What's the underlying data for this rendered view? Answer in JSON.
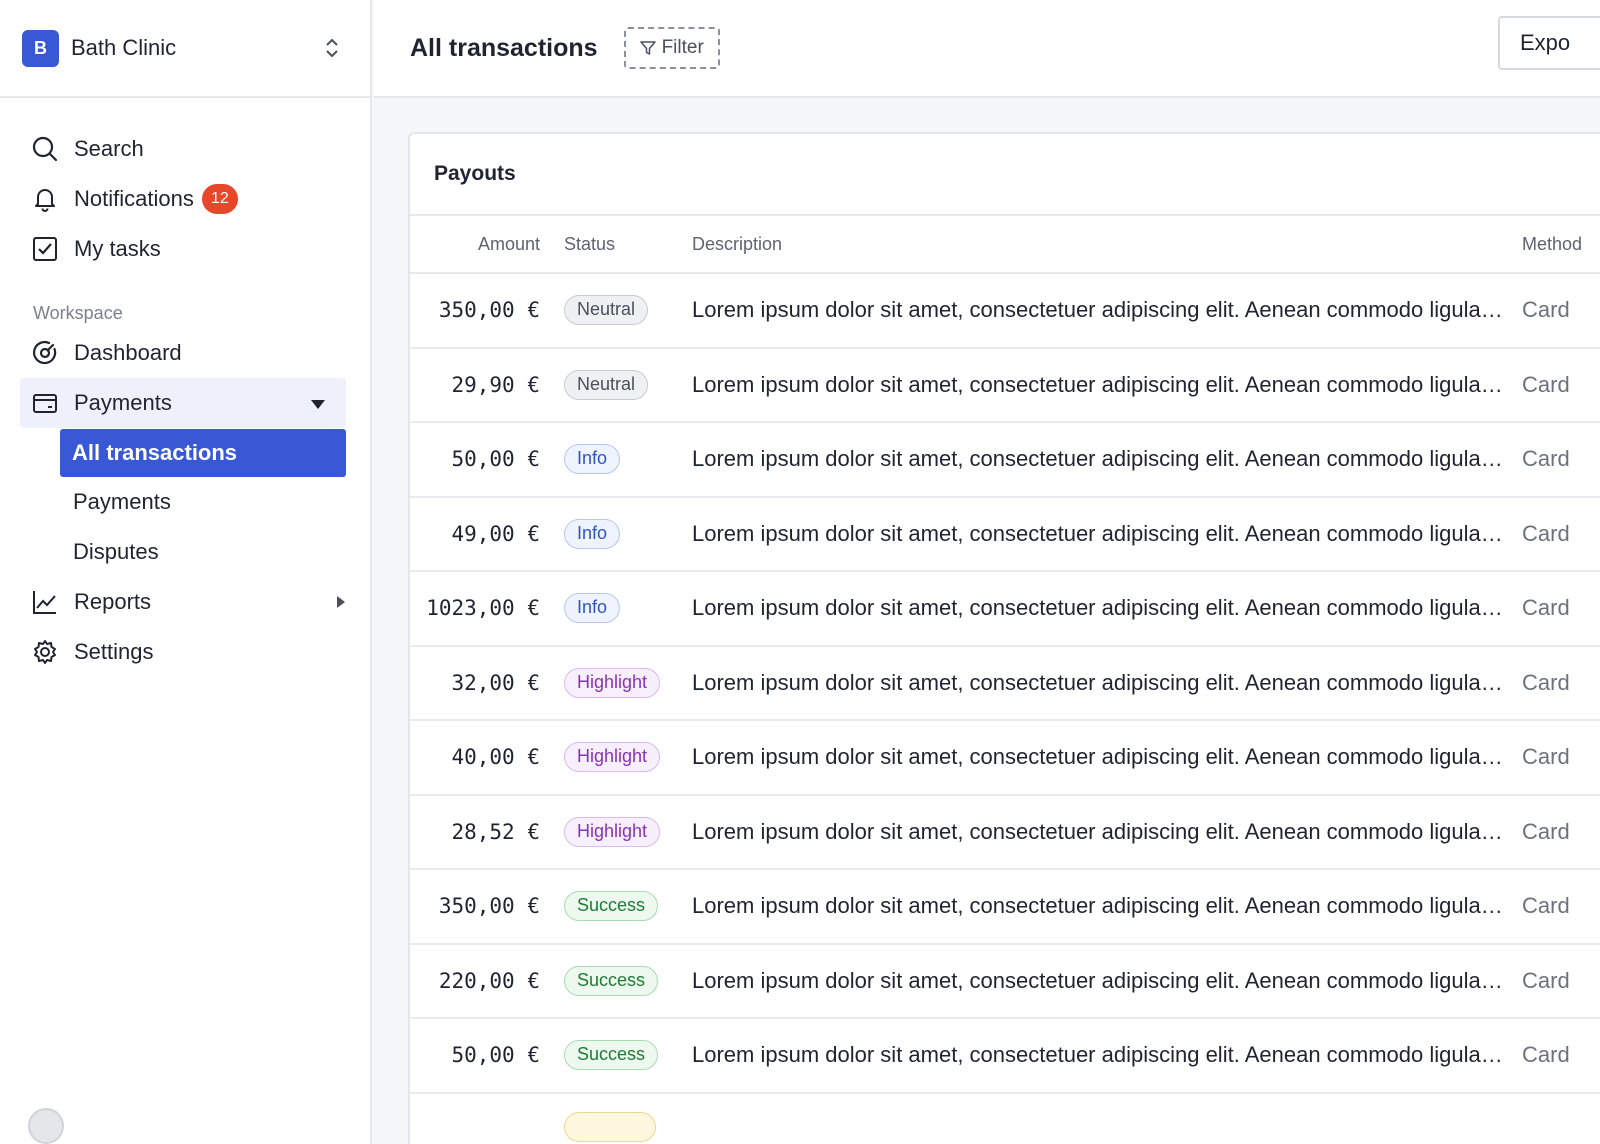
{
  "org": {
    "logo_letter": "B",
    "name": "Bath Clinic"
  },
  "nav": {
    "search": "Search",
    "notifications": "Notifications",
    "notifications_count": "12",
    "tasks": "My tasks",
    "section_label": "Workspace",
    "dashboard": "Dashboard",
    "payments": "Payments",
    "payments_sub": [
      "All transactions",
      "Payments",
      "Disputes"
    ],
    "reports": "Reports",
    "settings": "Settings"
  },
  "header": {
    "title": "All transactions",
    "filter_label": "Filter",
    "export_label": "Expo"
  },
  "table": {
    "title": "Payouts",
    "columns": {
      "amount": "Amount",
      "status": "Status",
      "description": "Description",
      "method": "Method"
    },
    "rows": [
      {
        "amount": "350,00 €",
        "status": "Neutral",
        "kind": "neutral",
        "description": "Lorem ipsum dolor sit amet, consectetuer adipiscing elit. Aenean commodo ligula eget dolor.",
        "method": "Card"
      },
      {
        "amount": "29,90 €",
        "status": "Neutral",
        "kind": "neutral",
        "description": "Lorem ipsum dolor sit amet, consectetuer adipiscing elit. Aenean commodo ligula eget dolor.",
        "method": "Card"
      },
      {
        "amount": "50,00 €",
        "status": "Info",
        "kind": "info",
        "description": "Lorem ipsum dolor sit amet, consectetuer adipiscing elit. Aenean commodo ligula eget dolor.",
        "method": "Card"
      },
      {
        "amount": "49,00 €",
        "status": "Info",
        "kind": "info",
        "description": "Lorem ipsum dolor sit amet, consectetuer adipiscing elit. Aenean commodo ligula eget dolor.",
        "method": "Card"
      },
      {
        "amount": "1023,00 €",
        "status": "Info",
        "kind": "info",
        "description": "Lorem ipsum dolor sit amet, consectetuer adipiscing elit. Aenean commodo ligula eget dolor.",
        "method": "Card"
      },
      {
        "amount": "32,00 €",
        "status": "Highlight",
        "kind": "highlight",
        "description": "Lorem ipsum dolor sit amet, consectetuer adipiscing elit. Aenean commodo ligula eget dolor.",
        "method": "Card"
      },
      {
        "amount": "40,00 €",
        "status": "Highlight",
        "kind": "highlight",
        "description": "Lorem ipsum dolor sit amet, consectetuer adipiscing elit. Aenean commodo ligula eget dolor.",
        "method": "Card"
      },
      {
        "amount": "28,52 €",
        "status": "Highlight",
        "kind": "highlight",
        "description": "Lorem ipsum dolor sit amet, consectetuer adipiscing elit. Aenean commodo ligula eget dolor.",
        "method": "Card"
      },
      {
        "amount": "350,00 €",
        "status": "Success",
        "kind": "success",
        "description": "Lorem ipsum dolor sit amet, consectetuer adipiscing elit. Aenean commodo ligula eget dolor.",
        "method": "Card"
      },
      {
        "amount": "220,00 €",
        "status": "Success",
        "kind": "success",
        "description": "Lorem ipsum dolor sit amet, consectetuer adipiscing elit. Aenean commodo ligula eget dolor.",
        "method": "Card"
      },
      {
        "amount": "50,00 €",
        "status": "Success",
        "kind": "success",
        "description": "Lorem ipsum dolor sit amet, consectetuer adipiscing elit. Aenean commodo ligula eget dolor.",
        "method": "Card"
      },
      {
        "amount": "",
        "status": "",
        "kind": "warning",
        "description": "",
        "method": ""
      }
    ]
  },
  "colors": {
    "accent": "#3858d6",
    "badge": "#e8472a"
  }
}
